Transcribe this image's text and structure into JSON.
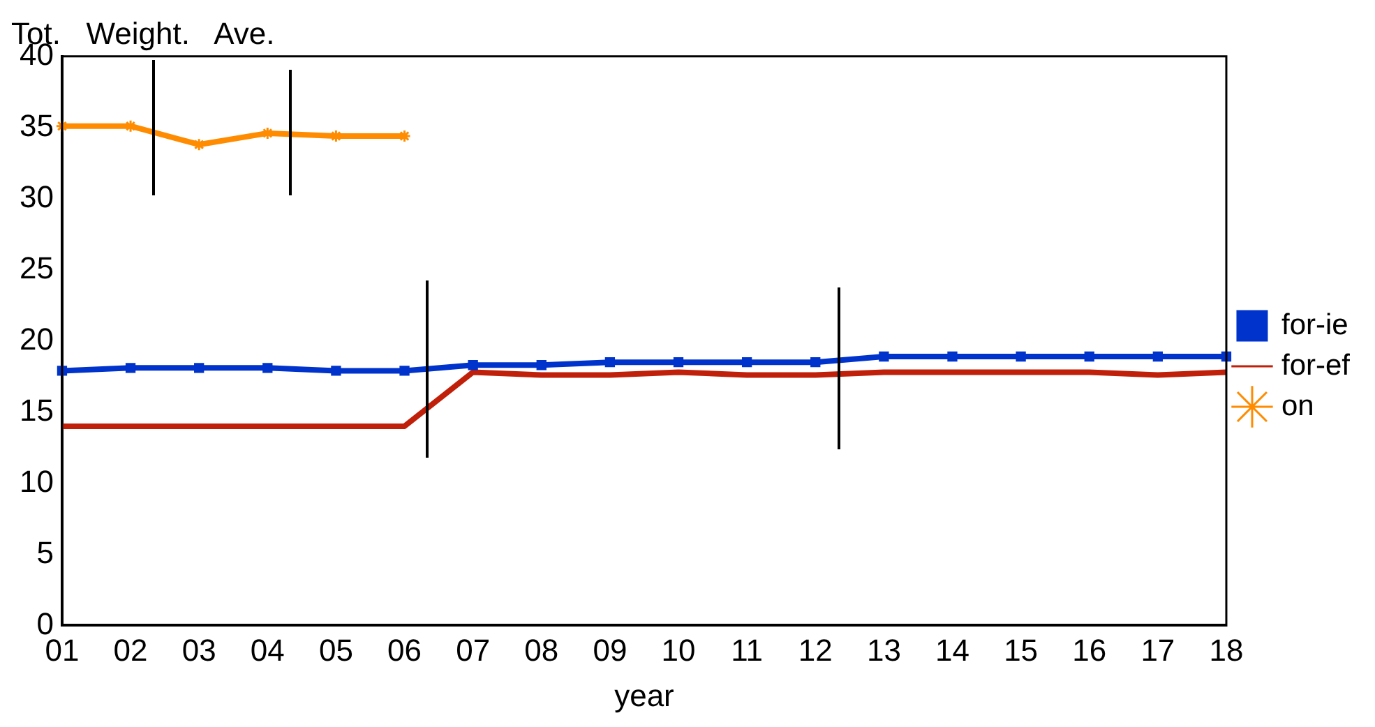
{
  "chart_data": {
    "type": "line",
    "title": "Tot.   Weight.   Ave.",
    "xlabel": "year",
    "categories": [
      "01",
      "02",
      "03",
      "04",
      "05",
      "06",
      "07",
      "08",
      "09",
      "10",
      "11",
      "12",
      "13",
      "14",
      "15",
      "16",
      "17",
      "18"
    ],
    "series": [
      {
        "name": "for-ie",
        "color": "#0033cc",
        "marker": "square",
        "values": [
          17.9,
          18.1,
          18.1,
          18.1,
          17.9,
          17.9,
          18.3,
          18.3,
          18.5,
          18.5,
          18.5,
          18.5,
          18.9,
          18.9,
          18.9,
          18.9,
          18.9,
          18.9
        ]
      },
      {
        "name": "for-ef",
        "color": "#c0200a",
        "marker": "none",
        "values": [
          14.0,
          14.0,
          14.0,
          14.0,
          14.0,
          14.0,
          17.8,
          17.6,
          17.6,
          17.8,
          17.6,
          17.6,
          17.8,
          17.8,
          17.8,
          17.8,
          17.6,
          17.8
        ]
      },
      {
        "name": "on",
        "color": "#ff8c00",
        "marker": "cross",
        "values": [
          35.1,
          35.1,
          33.8,
          34.6,
          34.4,
          34.4,
          null,
          null,
          null,
          null,
          null,
          null,
          null,
          null,
          null,
          null,
          null,
          null
        ]
      }
    ],
    "ylim": [
      0,
      40
    ],
    "yticks": [
      0,
      5,
      10,
      15,
      20,
      25,
      30,
      35,
      40
    ],
    "grid": false,
    "legend": "right",
    "line_style": "solid"
  }
}
